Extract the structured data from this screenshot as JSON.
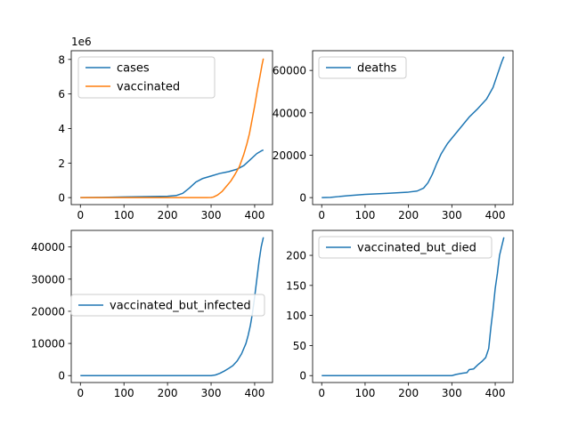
{
  "chart_data": [
    {
      "type": "line",
      "offset_text": "1e6",
      "xlim": [
        -21,
        441
      ],
      "ylim": [
        -405000,
        8505000
      ],
      "xticks": [
        0,
        100,
        200,
        300,
        400
      ],
      "yticks": [
        0,
        2,
        4,
        6,
        8
      ],
      "ytick_scale": 1000000,
      "legend_position": "upper-left",
      "series": [
        {
          "name": "cases",
          "color": "#1f77b4",
          "points": [
            [
              0,
              0
            ],
            [
              50,
              15000
            ],
            [
              100,
              40000
            ],
            [
              150,
              60000
            ],
            [
              200,
              80000
            ],
            [
              220,
              120000
            ],
            [
              235,
              250000
            ],
            [
              250,
              550000
            ],
            [
              265,
              900000
            ],
            [
              280,
              1100000
            ],
            [
              300,
              1250000
            ],
            [
              320,
              1400000
            ],
            [
              340,
              1500000
            ],
            [
              360,
              1650000
            ],
            [
              375,
              1850000
            ],
            [
              390,
              2200000
            ],
            [
              405,
              2550000
            ],
            [
              415,
              2700000
            ],
            [
              420,
              2760000
            ]
          ]
        },
        {
          "name": "vaccinated",
          "color": "#ff7f0e",
          "points": [
            [
              0,
              0
            ],
            [
              290,
              0
            ],
            [
              300,
              5000
            ],
            [
              305,
              30000
            ],
            [
              315,
              150000
            ],
            [
              325,
              350000
            ],
            [
              335,
              650000
            ],
            [
              345,
              950000
            ],
            [
              355,
              1350000
            ],
            [
              365,
              1800000
            ],
            [
              375,
              2500000
            ],
            [
              382,
              3100000
            ],
            [
              388,
              3700000
            ],
            [
              394,
              4500000
            ],
            [
              400,
              5300000
            ],
            [
              406,
              6200000
            ],
            [
              412,
              7000000
            ],
            [
              417,
              7700000
            ],
            [
              420,
              8050000
            ]
          ]
        }
      ]
    },
    {
      "type": "line",
      "xlim": [
        -21,
        441
      ],
      "ylim": [
        -3300,
        69300
      ],
      "xticks": [
        0,
        100,
        200,
        300,
        400
      ],
      "yticks": [
        0,
        20000,
        40000,
        60000
      ],
      "legend_position": "upper-left",
      "series": [
        {
          "name": "deaths",
          "color": "#1f77b4",
          "points": [
            [
              0,
              0
            ],
            [
              20,
              100
            ],
            [
              40,
              500
            ],
            [
              60,
              900
            ],
            [
              100,
              1500
            ],
            [
              150,
              2000
            ],
            [
              200,
              2600
            ],
            [
              220,
              3100
            ],
            [
              235,
              4500
            ],
            [
              245,
              7000
            ],
            [
              255,
              11000
            ],
            [
              265,
              16000
            ],
            [
              275,
              20500
            ],
            [
              290,
              25500
            ],
            [
              300,
              28000
            ],
            [
              320,
              33000
            ],
            [
              340,
              38000
            ],
            [
              360,
              42000
            ],
            [
              380,
              46500
            ],
            [
              395,
              52000
            ],
            [
              405,
              58000
            ],
            [
              415,
              64000
            ],
            [
              420,
              66500
            ]
          ]
        }
      ]
    },
    {
      "type": "line",
      "xlim": [
        -21,
        441
      ],
      "ylim": [
        -2150,
        45150
      ],
      "xticks": [
        0,
        100,
        200,
        300,
        400
      ],
      "yticks": [
        0,
        10000,
        20000,
        30000,
        40000
      ],
      "legend_position": "center-left",
      "series": [
        {
          "name": "vaccinated_but_infected",
          "color": "#1f77b4",
          "points": [
            [
              0,
              0
            ],
            [
              300,
              0
            ],
            [
              310,
              200
            ],
            [
              320,
              700
            ],
            [
              330,
              1400
            ],
            [
              340,
              2200
            ],
            [
              350,
              3100
            ],
            [
              360,
              4600
            ],
            [
              370,
              6800
            ],
            [
              380,
              10000
            ],
            [
              385,
              12500
            ],
            [
              390,
              15500
            ],
            [
              395,
              19500
            ],
            [
              400,
              24500
            ],
            [
              405,
              30000
            ],
            [
              410,
              35500
            ],
            [
              415,
              40000
            ],
            [
              420,
              43000
            ]
          ]
        }
      ]
    },
    {
      "type": "line",
      "xlim": [
        -21,
        441
      ],
      "ylim": [
        -11.5,
        241.5
      ],
      "xticks": [
        0,
        100,
        200,
        300,
        400
      ],
      "yticks": [
        0,
        50,
        100,
        150,
        200
      ],
      "legend_position": "upper-left",
      "series": [
        {
          "name": "vaccinated_but_died",
          "color": "#1f77b4",
          "points": [
            [
              0,
              0
            ],
            [
              300,
              0
            ],
            [
              310,
              2
            ],
            [
              325,
              4
            ],
            [
              335,
              5
            ],
            [
              340,
              10
            ],
            [
              350,
              11
            ],
            [
              360,
              18
            ],
            [
              370,
              24
            ],
            [
              378,
              30
            ],
            [
              385,
              45
            ],
            [
              390,
              80
            ],
            [
              395,
              110
            ],
            [
              400,
              145
            ],
            [
              405,
              170
            ],
            [
              410,
              200
            ],
            [
              415,
              215
            ],
            [
              420,
              230
            ]
          ]
        }
      ]
    }
  ]
}
